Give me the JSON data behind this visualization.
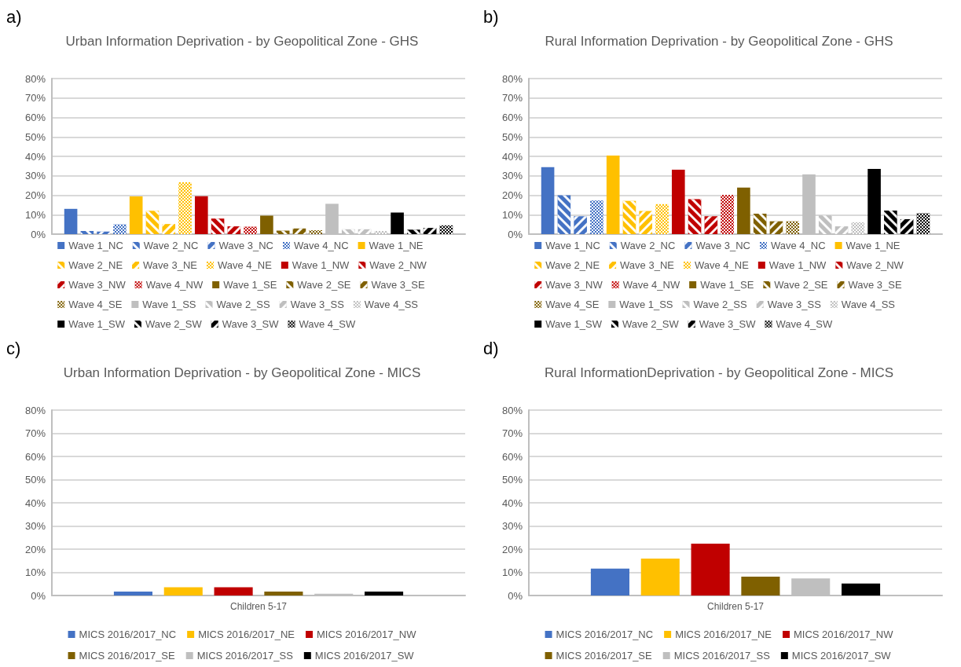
{
  "chart_data": [
    {
      "type": "bar",
      "title": "Urban Information Deprivation - by Geopolitical Zone - GHS",
      "annotations": [
        "a)"
      ],
      "categories": [
        null
      ],
      "ylim": [
        0,
        80
      ],
      "yticks": [
        {
          "value": 0,
          "label": "0%"
        },
        {
          "value": 10,
          "label": "10%"
        },
        {
          "value": 20,
          "label": "20%"
        },
        {
          "value": 30,
          "label": "30%"
        },
        {
          "value": 40,
          "label": "40%"
        },
        {
          "value": 50,
          "label": "50%"
        },
        {
          "value": 60,
          "label": "60%"
        },
        {
          "value": 70,
          "label": "70%"
        },
        {
          "value": 80,
          "label": "80%"
        }
      ],
      "grid": "y",
      "legend": "bottom",
      "series": [
        {
          "name": "Wave 1_NC",
          "color": "#4472c4",
          "values": [
            13
          ]
        },
        {
          "name": "Wave 2_NC",
          "color": "#4472c4",
          "values": [
            1.6
          ]
        },
        {
          "name": "Wave 3_NC",
          "color": "#4472c4",
          "values": [
            1.3
          ]
        },
        {
          "name": "Wave 4_NC",
          "color": "#4472c4",
          "values": [
            5
          ]
        },
        {
          "name": "Wave 1_NE",
          "color": "#ffc000",
          "values": [
            19.4
          ]
        },
        {
          "name": "Wave 2_NE",
          "color": "#ffc000",
          "values": [
            12
          ]
        },
        {
          "name": "Wave 3_NE",
          "color": "#ffc000",
          "values": [
            5.2
          ]
        },
        {
          "name": "Wave 4_NE",
          "color": "#ffc000",
          "values": [
            26.7
          ]
        },
        {
          "name": "Wave 1_NW",
          "color": "#c00000",
          "values": [
            19.5
          ]
        },
        {
          "name": "Wave 2_NW",
          "color": "#c00000",
          "values": [
            8
          ]
        },
        {
          "name": "Wave 3_NW",
          "color": "#c00000",
          "values": [
            4
          ]
        },
        {
          "name": "Wave 4_NW",
          "color": "#c00000",
          "values": [
            3.8
          ]
        },
        {
          "name": "Wave 1_SE",
          "color": "#7f6000",
          "values": [
            9.5
          ]
        },
        {
          "name": "Wave 2_SE",
          "color": "#7f6000",
          "values": [
            1.8
          ]
        },
        {
          "name": "Wave 3_SE",
          "color": "#7f6000",
          "values": [
            2.9
          ]
        },
        {
          "name": "Wave 4_SE",
          "color": "#7f6000",
          "values": [
            2
          ]
        },
        {
          "name": "Wave 1_SS",
          "color": "#bfbfbf",
          "values": [
            15.6
          ]
        },
        {
          "name": "Wave 2_SS",
          "color": "#bfbfbf",
          "values": [
            2.5
          ]
        },
        {
          "name": "Wave 3_SS",
          "color": "#bfbfbf",
          "values": [
            2.5
          ]
        },
        {
          "name": "Wave 4_SS",
          "color": "#bfbfbf",
          "values": [
            1.6
          ]
        },
        {
          "name": "Wave 1_SW",
          "color": "#000000",
          "values": [
            11.1
          ]
        },
        {
          "name": "Wave 2_SW",
          "color": "#000000",
          "values": [
            2.3
          ]
        },
        {
          "name": "Wave 3_SW",
          "color": "#000000",
          "values": [
            3.2
          ]
        },
        {
          "name": "Wave 4_SW",
          "color": "#000000",
          "values": [
            4.5
          ]
        }
      ]
    },
    {
      "type": "bar",
      "title": "Rural Information Deprivation - by Geopolitical Zone - GHS",
      "annotations": [
        "b)"
      ],
      "categories": [
        null
      ],
      "ylim": [
        0,
        80
      ],
      "yticks": [
        {
          "value": 0,
          "label": "0%"
        },
        {
          "value": 10,
          "label": "10%"
        },
        {
          "value": 20,
          "label": "20%"
        },
        {
          "value": 30,
          "label": "30%"
        },
        {
          "value": 40,
          "label": "40%"
        },
        {
          "value": 50,
          "label": "50%"
        },
        {
          "value": 60,
          "label": "60%"
        },
        {
          "value": 70,
          "label": "70%"
        },
        {
          "value": 80,
          "label": "80%"
        }
      ],
      "grid": "y",
      "legend": "bottom",
      "series": [
        {
          "name": "Wave 1_NC",
          "color": "#4472c4",
          "values": [
            34.4
          ]
        },
        {
          "name": "Wave 2_NC",
          "color": "#4472c4",
          "values": [
            20
          ]
        },
        {
          "name": "Wave 3_NC",
          "color": "#4472c4",
          "values": [
            9.2
          ]
        },
        {
          "name": "Wave 4_NC",
          "color": "#4472c4",
          "values": [
            17.3
          ]
        },
        {
          "name": "Wave 1_NE",
          "color": "#ffc000",
          "values": [
            40.4
          ]
        },
        {
          "name": "Wave 2_NE",
          "color": "#ffc000",
          "values": [
            17.1
          ]
        },
        {
          "name": "Wave 3_NE",
          "color": "#ffc000",
          "values": [
            11.9
          ]
        },
        {
          "name": "Wave 4_NE",
          "color": "#ffc000",
          "values": [
            15.4
          ]
        },
        {
          "name": "Wave 1_NW",
          "color": "#c00000",
          "values": [
            33.1
          ]
        },
        {
          "name": "Wave 2_NW",
          "color": "#c00000",
          "values": [
            18
          ]
        },
        {
          "name": "Wave 3_NW",
          "color": "#c00000",
          "values": [
            9.2
          ]
        },
        {
          "name": "Wave 4_NW",
          "color": "#c00000",
          "values": [
            20.2
          ]
        },
        {
          "name": "Wave 1_SE",
          "color": "#7f6000",
          "values": [
            23.9
          ]
        },
        {
          "name": "Wave 2_SE",
          "color": "#7f6000",
          "values": [
            10.5
          ]
        },
        {
          "name": "Wave 3_SE",
          "color": "#7f6000",
          "values": [
            6.6
          ]
        },
        {
          "name": "Wave 4_SE",
          "color": "#7f6000",
          "values": [
            6.6
          ]
        },
        {
          "name": "Wave 1_SS",
          "color": "#bfbfbf",
          "values": [
            30.7
          ]
        },
        {
          "name": "Wave 2_SS",
          "color": "#bfbfbf",
          "values": [
            9.6
          ]
        },
        {
          "name": "Wave 3_SS",
          "color": "#bfbfbf",
          "values": [
            4
          ]
        },
        {
          "name": "Wave 4_SS",
          "color": "#bfbfbf",
          "values": [
            6.1
          ]
        },
        {
          "name": "Wave 1_SW",
          "color": "#000000",
          "values": [
            33.5
          ]
        },
        {
          "name": "Wave 2_SW",
          "color": "#000000",
          "values": [
            12.1
          ]
        },
        {
          "name": "Wave 3_SW",
          "color": "#000000",
          "values": [
            7.7
          ]
        },
        {
          "name": "Wave 4_SW",
          "color": "#000000",
          "values": [
            10.7
          ]
        }
      ]
    },
    {
      "type": "bar",
      "title": "Urban Information Deprivation - by Geopolitical Zone - MICS",
      "annotations": [
        "c)"
      ],
      "categories": [
        "Children 5-17"
      ],
      "ylim": [
        0,
        80
      ],
      "yticks": [
        {
          "value": 0,
          "label": "0%"
        },
        {
          "value": 10,
          "label": "10%"
        },
        {
          "value": 20,
          "label": "20%"
        },
        {
          "value": 30,
          "label": "30%"
        },
        {
          "value": 40,
          "label": "40%"
        },
        {
          "value": 50,
          "label": "50%"
        },
        {
          "value": 60,
          "label": "60%"
        },
        {
          "value": 70,
          "label": "70%"
        },
        {
          "value": 80,
          "label": "80%"
        }
      ],
      "grid": "y",
      "legend": "bottom",
      "series": [
        {
          "name": "MICS 2016/2017_NC",
          "color": "#4472c4",
          "values": [
            1.7
          ]
        },
        {
          "name": "MICS 2016/2017_NE",
          "color": "#ffc000",
          "values": [
            3.6
          ]
        },
        {
          "name": "MICS 2016/2017_NW",
          "color": "#c00000",
          "values": [
            3.6
          ]
        },
        {
          "name": "MICS 2016/2017_SE",
          "color": "#7f6000",
          "values": [
            1.7
          ]
        },
        {
          "name": "MICS 2016/2017_SS",
          "color": "#bfbfbf",
          "values": [
            0.8
          ]
        },
        {
          "name": "MICS 2016/2017_SW",
          "color": "#000000",
          "values": [
            1.7
          ]
        }
      ]
    },
    {
      "type": "bar",
      "title": "Rural InformationDeprivation - by Geopolitical Zone - MICS",
      "annotations": [
        "d)"
      ],
      "categories": [
        "Children 5-17"
      ],
      "ylim": [
        0,
        80
      ],
      "yticks": [
        {
          "value": 0,
          "label": "0%"
        },
        {
          "value": 10,
          "label": "10%"
        },
        {
          "value": 20,
          "label": "20%"
        },
        {
          "value": 30,
          "label": "30%"
        },
        {
          "value": 40,
          "label": "40%"
        },
        {
          "value": 50,
          "label": "50%"
        },
        {
          "value": 60,
          "label": "60%"
        },
        {
          "value": 70,
          "label": "70%"
        },
        {
          "value": 80,
          "label": "80%"
        }
      ],
      "grid": "y",
      "legend": "bottom",
      "series": [
        {
          "name": "MICS 2016/2017_NC",
          "color": "#4472c4",
          "values": [
            11.6
          ]
        },
        {
          "name": "MICS 2016/2017_NE",
          "color": "#ffc000",
          "values": [
            15.9
          ]
        },
        {
          "name": "MICS 2016/2017_NW",
          "color": "#c00000",
          "values": [
            22.4
          ]
        },
        {
          "name": "MICS 2016/2017_SE",
          "color": "#7f6000",
          "values": [
            8.1
          ]
        },
        {
          "name": "MICS 2016/2017_SS",
          "color": "#bfbfbf",
          "values": [
            7.4
          ]
        },
        {
          "name": "MICS 2016/2017_SW",
          "color": "#000000",
          "values": [
            5.2
          ]
        }
      ]
    }
  ]
}
